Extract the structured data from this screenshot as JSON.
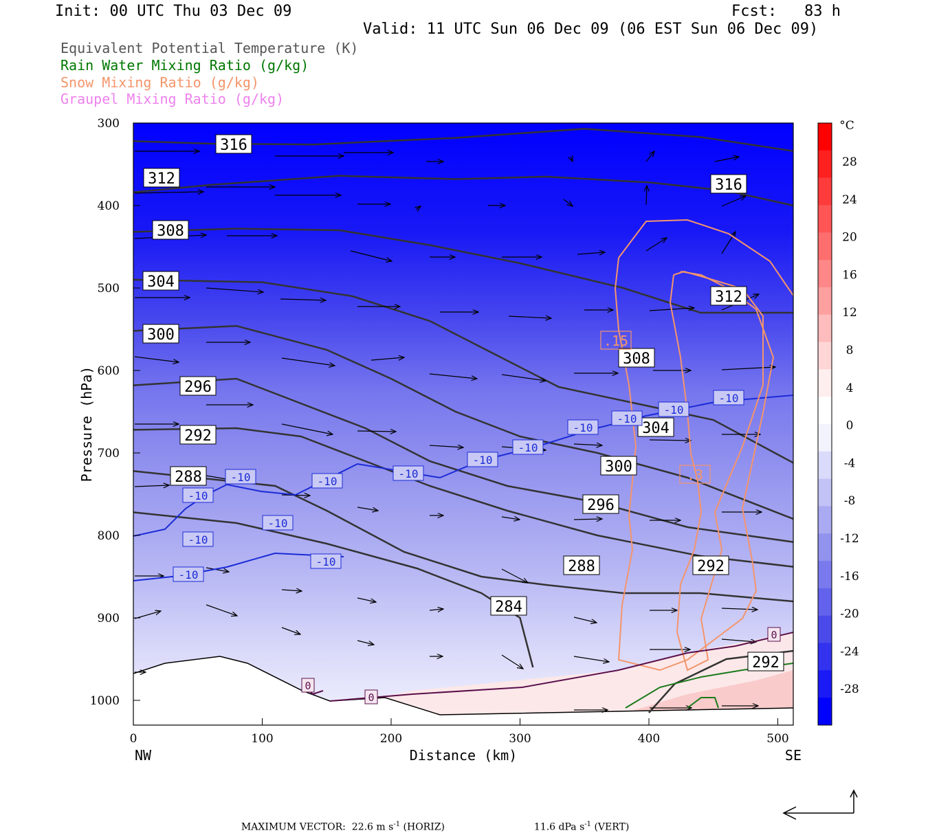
{
  "header": {
    "init": "Init: 00 UTC Thu 03 Dec 09",
    "fcst": "Fcst:   83 h",
    "valid": "Valid: 11 UTC Sun 06 Dec 09 (06 EST Sun 06 Dec 09)"
  },
  "legend": [
    {
      "label": "Equivalent Potential Temperature (K)",
      "color": "#555555"
    },
    {
      "label": "Rain Water Mixing Ratio (g/kg)",
      "color": "#007700"
    },
    {
      "label": "Snow Mixing Ratio (g/kg)",
      "color": "#f4956b"
    },
    {
      "label": "Graupel Mixing Ratio (g/kg)",
      "color": "#ee82ee"
    }
  ],
  "chart_data": {
    "type": "cross-section",
    "xlabel": "Distance (km)",
    "ylabel": "Pressure (hPa)",
    "xlim": [
      0,
      512
    ],
    "ylim": [
      1030,
      300
    ],
    "x_ticks": [
      "0",
      "100",
      "200",
      "300",
      "400",
      "500"
    ],
    "y_ticks": [
      "300",
      "400",
      "500",
      "600",
      "700",
      "800",
      "900",
      "1000"
    ],
    "x_end_labels": {
      "left": "NW",
      "right": "SE"
    },
    "fill_variable_unit": "°C",
    "colorbar_ticks": [
      "28",
      "24",
      "20",
      "16",
      "12",
      "8",
      "4",
      "0",
      "-4",
      "-8",
      "-12",
      "-16",
      "-20",
      "-24",
      "-28"
    ],
    "theta_e_contours": [
      {
        "label": "316",
        "points": [
          [
            0,
            322
          ],
          [
            60,
            325
          ],
          [
            140,
            326
          ],
          [
            250,
            318
          ],
          [
            350,
            307
          ],
          [
            440,
            317
          ],
          [
            512,
            334
          ]
        ]
      },
      {
        "label": "312",
        "points": [
          [
            0,
            384
          ],
          [
            60,
            375
          ],
          [
            160,
            364
          ],
          [
            250,
            368
          ],
          [
            320,
            365
          ],
          [
            400,
            372
          ],
          [
            460,
            382
          ],
          [
            512,
            400
          ]
        ]
      },
      {
        "label": "308",
        "points": [
          [
            0,
            432
          ],
          [
            80,
            428
          ],
          [
            160,
            430
          ],
          [
            230,
            448
          ],
          [
            300,
            470
          ],
          [
            380,
            500
          ],
          [
            440,
            530
          ],
          [
            512,
            530
          ]
        ]
      },
      {
        "label": "304",
        "points": [
          [
            0,
            490
          ],
          [
            100,
            493
          ],
          [
            170,
            510
          ],
          [
            230,
            540
          ],
          [
            280,
            580
          ],
          [
            330,
            620
          ],
          [
            390,
            640
          ],
          [
            450,
            660
          ],
          [
            512,
            712
          ]
        ]
      },
      {
        "label": "300",
        "points": [
          [
            0,
            552
          ],
          [
            80,
            546
          ],
          [
            150,
            575
          ],
          [
            200,
            610
          ],
          [
            250,
            650
          ],
          [
            300,
            680
          ],
          [
            360,
            700
          ],
          [
            430,
            730
          ],
          [
            512,
            780
          ]
        ]
      },
      {
        "label": "296",
        "points": [
          [
            0,
            618
          ],
          [
            80,
            610
          ],
          [
            130,
            640
          ],
          [
            180,
            670
          ],
          [
            230,
            710
          ],
          [
            290,
            740
          ],
          [
            360,
            760
          ],
          [
            430,
            790
          ],
          [
            512,
            808
          ]
        ]
      },
      {
        "label": "292",
        "points": [
          [
            0,
            672
          ],
          [
            80,
            670
          ],
          [
            130,
            680
          ],
          [
            180,
            710
          ],
          [
            230,
            740
          ],
          [
            290,
            770
          ],
          [
            360,
            800
          ],
          [
            440,
            825
          ],
          [
            512,
            838
          ]
        ]
      },
      {
        "label": "288",
        "points": [
          [
            0,
            722
          ],
          [
            80,
            735
          ],
          [
            110,
            740
          ],
          [
            150,
            770
          ],
          [
            210,
            820
          ],
          [
            270,
            850
          ],
          [
            320,
            860
          ],
          [
            380,
            870
          ],
          [
            440,
            870
          ],
          [
            512,
            880
          ]
        ]
      },
      {
        "label": "284",
        "points": [
          [
            0,
            772
          ],
          [
            80,
            785
          ],
          [
            150,
            810
          ],
          [
            220,
            840
          ],
          [
            270,
            870
          ],
          [
            300,
            900
          ],
          [
            310,
            960
          ]
        ]
      },
      {
        "label": "292",
        "points": [
          [
            400,
            1015
          ],
          [
            420,
            980
          ],
          [
            460,
            950
          ],
          [
            512,
            940
          ]
        ]
      }
    ],
    "temperature_labels": [
      "-10",
      "-10",
      "-10",
      "-10",
      "-10",
      "-10",
      "-10",
      "-10",
      "-10",
      "-10",
      "-10",
      "-10",
      "-10",
      "-10"
    ],
    "freezing_labels": [
      "0",
      "0",
      "0"
    ],
    "snow_labels": [
      ".15",
      ".3"
    ],
    "vector_caption": "MAXIMUM VECTOR:  22.6 m s",
    "vector_caption_horiz": "(HORIZ)",
    "vector_caption_vert_value": "11.6 dPa s",
    "vector_caption_vert": "(VERT)",
    "vector_caption_exp": "-1"
  }
}
